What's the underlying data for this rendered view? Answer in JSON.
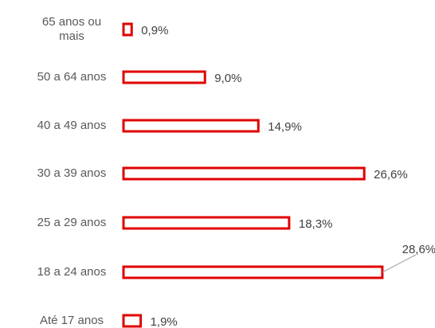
{
  "chart_data": {
    "type": "bar",
    "orientation": "horizontal",
    "categories": [
      "65 anos ou mais",
      "50 a 64 anos",
      "40 a 49 anos",
      "30 a 39 anos",
      "25 a 29 anos",
      "18 a 24 anos",
      "Até 17 anos"
    ],
    "values": [
      0.9,
      9.0,
      14.9,
      26.6,
      18.3,
      28.6,
      1.9
    ],
    "value_labels": [
      "0,9%",
      "9,0%",
      "14,9%",
      "26,6%",
      "18,3%",
      "28,6%",
      "1,9%"
    ],
    "color": "#e00000"
  }
}
